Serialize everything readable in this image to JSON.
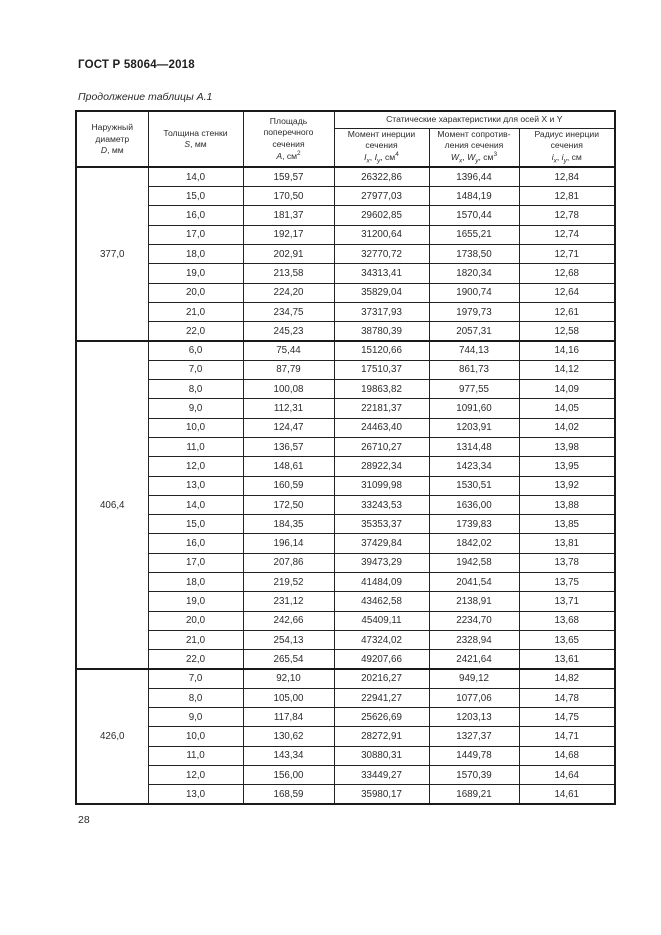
{
  "page": {
    "title": "ГОСТ Р 58064—2018",
    "caption": "Продолжение таблицы А.1",
    "page_number": "28"
  },
  "table": {
    "headers": {
      "span_title": "Статические характеристики  для осей X и Y",
      "c1_name": "Наружный\nдиаметр",
      "c1_sym": "D",
      "c1_unit": ", мм",
      "c2_name": "Толщина стенки",
      "c2_sym": "S",
      "c2_unit": ", мм",
      "c3_name": "Площадь\nпоперечного\nсечения",
      "c3_sym": "A",
      "c3_unit": ", см",
      "c3_sup": "2",
      "c4_name": "Момент инерции\nсечения",
      "c4_sym1": "I",
      "c4_sub1": "x",
      "c4_comma": ", ",
      "c4_sym2": "I",
      "c4_sub2": "y",
      "c4_unit": ", см",
      "c4_sup": "4",
      "c5_name": "Момент сопротив-\nления сечения",
      "c5_sym1": "W",
      "c5_sub1": "x",
      "c5_comma": ", ",
      "c5_sym2": "W",
      "c5_sub2": "y",
      "c5_unit": ", см",
      "c5_sup": "3",
      "c6_name": "Радиус инерции\nсечения",
      "c6_sym1": "i",
      "c6_sub1": "x",
      "c6_comma": ", ",
      "c6_sym2": "i",
      "c6_sub2": "y",
      "c6_unit": ", см"
    },
    "groups": [
      {
        "diameter": "377,0",
        "rows": [
          [
            "14,0",
            "159,57",
            "26322,86",
            "1396,44",
            "12,84"
          ],
          [
            "15,0",
            "170,50",
            "27977,03",
            "1484,19",
            "12,81"
          ],
          [
            "16,0",
            "181,37",
            "29602,85",
            "1570,44",
            "12,78"
          ],
          [
            "17,0",
            "192,17",
            "31200,64",
            "1655,21",
            "12,74"
          ],
          [
            "18,0",
            "202,91",
            "32770,72",
            "1738,50",
            "12,71"
          ],
          [
            "19,0",
            "213,58",
            "34313,41",
            "1820,34",
            "12,68"
          ],
          [
            "20,0",
            "224,20",
            "35829,04",
            "1900,74",
            "12,64"
          ],
          [
            "21,0",
            "234,75",
            "37317,93",
            "1979,73",
            "12,61"
          ],
          [
            "22,0",
            "245,23",
            "38780,39",
            "2057,31",
            "12,58"
          ]
        ]
      },
      {
        "diameter": "406,4",
        "rows": [
          [
            "6,0",
            "75,44",
            "15120,66",
            "744,13",
            "14,16"
          ],
          [
            "7,0",
            "87,79",
            "17510,37",
            "861,73",
            "14,12"
          ],
          [
            "8,0",
            "100,08",
            "19863,82",
            "977,55",
            "14,09"
          ],
          [
            "9,0",
            "112,31",
            "22181,37",
            "1091,60",
            "14,05"
          ],
          [
            "10,0",
            "124,47",
            "24463,40",
            "1203,91",
            "14,02"
          ],
          [
            "11,0",
            "136,57",
            "26710,27",
            "1314,48",
            "13,98"
          ],
          [
            "12,0",
            "148,61",
            "28922,34",
            "1423,34",
            "13,95"
          ],
          [
            "13,0",
            "160,59",
            "31099,98",
            "1530,51",
            "13,92"
          ],
          [
            "14,0",
            "172,50",
            "33243,53",
            "1636,00",
            "13,88"
          ],
          [
            "15,0",
            "184,35",
            "35353,37",
            "1739,83",
            "13,85"
          ],
          [
            "16,0",
            "196,14",
            "37429,84",
            "1842,02",
            "13,81"
          ],
          [
            "17,0",
            "207,86",
            "39473,29",
            "1942,58",
            "13,78"
          ],
          [
            "18,0",
            "219,52",
            "41484,09",
            "2041,54",
            "13,75"
          ],
          [
            "19,0",
            "231,12",
            "43462,58",
            "2138,91",
            "13,71"
          ],
          [
            "20,0",
            "242,66",
            "45409,11",
            "2234,70",
            "13,68"
          ],
          [
            "21,0",
            "254,13",
            "47324,02",
            "2328,94",
            "13,65"
          ],
          [
            "22,0",
            "265,54",
            "49207,66",
            "2421,64",
            "13,61"
          ]
        ]
      },
      {
        "diameter": "426,0",
        "rows": [
          [
            "7,0",
            "92,10",
            "20216,27",
            "949,12",
            "14,82"
          ],
          [
            "8,0",
            "105,00",
            "22941,27",
            "1077,06",
            "14,78"
          ],
          [
            "9,0",
            "117,84",
            "25626,69",
            "1203,13",
            "14,75"
          ],
          [
            "10,0",
            "130,62",
            "28272,91",
            "1327,37",
            "14,71"
          ],
          [
            "11,0",
            "143,34",
            "30880,31",
            "1449,78",
            "14,68"
          ],
          [
            "12,0",
            "156,00",
            "33449,27",
            "1570,39",
            "14,64"
          ],
          [
            "13,0",
            "168,59",
            "35980,17",
            "1689,21",
            "14,61"
          ]
        ]
      }
    ]
  }
}
